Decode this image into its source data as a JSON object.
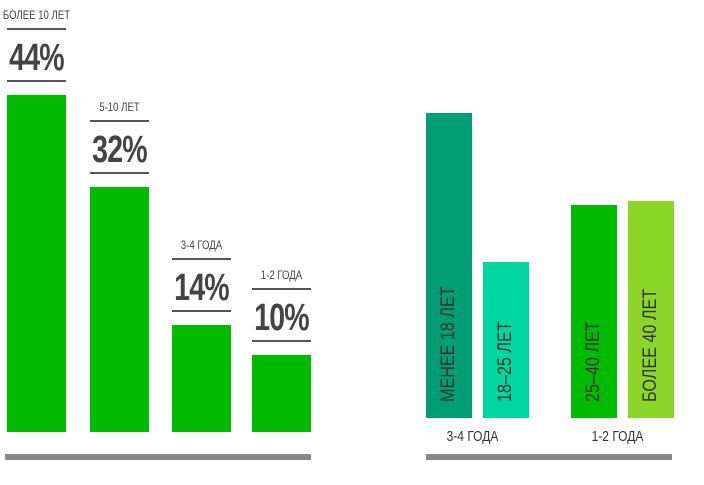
{
  "chart_data": [
    {
      "type": "bar",
      "categories": [
        "БОЛЕЕ 10 ЛЕТ",
        "5-10 ЛЕТ",
        "3-4 ГОДА",
        "1-2 ГОДА"
      ],
      "values": [
        44,
        32,
        14,
        10
      ],
      "value_labels": [
        "44%",
        "32%",
        "14%",
        "10%"
      ],
      "unit": "%",
      "color": "#00bb00",
      "axis_color": "#8a8a8a",
      "grid": false
    },
    {
      "type": "bar",
      "groups": [
        "3-4 ГОДА",
        "1-2 ГОДА"
      ],
      "bars": [
        {
          "label": "МЕНЕЕ 18 ЛЕТ",
          "group": 0,
          "value": 100,
          "color": "#009e72"
        },
        {
          "label": "18–25 ЛЕТ",
          "group": 0,
          "value": 51,
          "color": "#00d6a2"
        },
        {
          "label": "25–40 ЛЕТ",
          "group": 1,
          "value": 70,
          "color": "#00bb00"
        },
        {
          "label": "БОЛЕЕ 40 ЛЕТ",
          "group": 1,
          "value": 71,
          "color": "#8cd62a"
        }
      ],
      "value_note": "relative heights, no values printed",
      "axis_color": "#8a8a8a",
      "grid": false
    }
  ]
}
